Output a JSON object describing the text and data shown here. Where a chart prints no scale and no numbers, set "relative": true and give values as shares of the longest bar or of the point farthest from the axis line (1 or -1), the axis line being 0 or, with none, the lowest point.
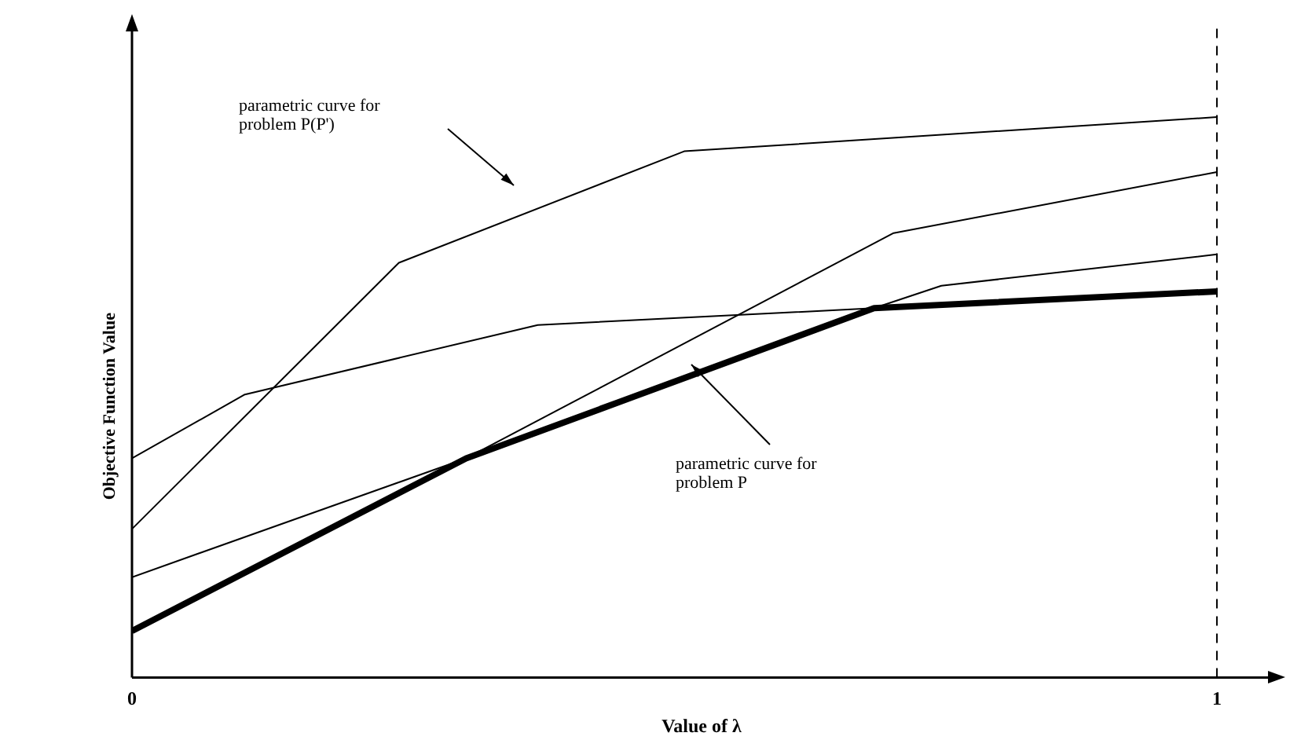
{
  "chart_data": {
    "type": "line",
    "xlabel": "Value of λ",
    "ylabel": "Objective Function Value",
    "relative": true,
    "xlim": [
      0,
      1.05
    ],
    "xticks": [
      0,
      1
    ],
    "grid": false,
    "legend": false,
    "marker": "none",
    "tick_labels": "x",
    "series": [
      {
        "color": "#000000",
        "x": [
          0,
          0.104,
          0.374,
          0.684,
          1
        ],
        "values": [
          0.391,
          0.505,
          0.629,
          0.659,
          0.689
        ]
      },
      {
        "color": "#000000",
        "x": [
          0,
          0.308,
          0.684,
          0.746,
          1
        ],
        "values": [
          0.083,
          0.391,
          0.659,
          0.699,
          0.755
        ]
      },
      {
        "color": "#000000",
        "x": [
          0,
          0.308,
          0.702,
          1
        ],
        "values": [
          0.179,
          0.391,
          0.793,
          0.902
        ]
      },
      {
        "color": "#000000",
        "x": [
          0,
          0.246,
          0.509,
          1
        ],
        "values": [
          0.265,
          0.74,
          0.939,
          1
        ]
      },
      {
        "color": "#000000",
        "x": [
          0,
          0.308,
          0.684,
          1
        ],
        "values": [
          0.083,
          0.391,
          0.659,
          0.689
        ]
      }
    ],
    "ref_lines": [
      {
        "axis": "x",
        "value": 1,
        "line_style": "dashed",
        "color": "#000000"
      }
    ],
    "annotations": [
      "parametric curve for\nproblem P(P')",
      "parametric curve for\nproblem P"
    ]
  }
}
